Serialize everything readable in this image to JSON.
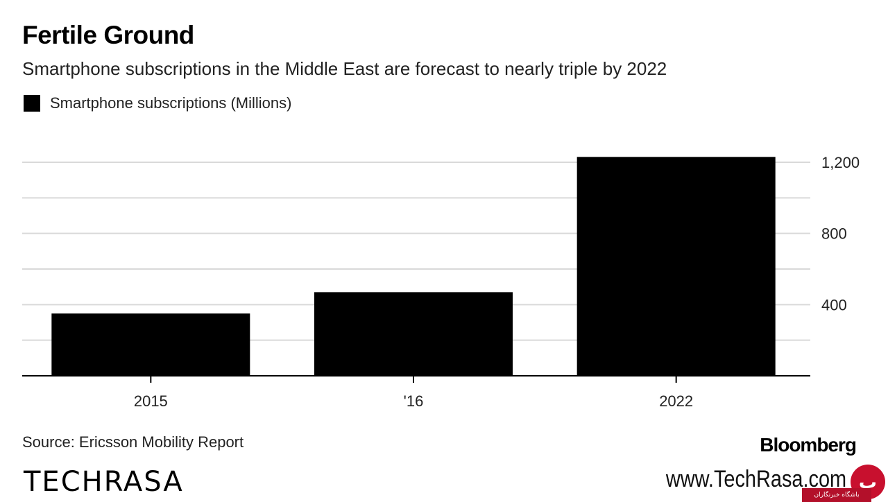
{
  "header": {
    "title": "Fertile Ground",
    "subtitle": "Smartphone subscriptions in the Middle East are forecast to nearly triple by 2022"
  },
  "legend": {
    "label": "Smartphone subscriptions (Millions)",
    "color": "#000000"
  },
  "chart_data": {
    "type": "bar",
    "categories": [
      "2015",
      "'16",
      "2022"
    ],
    "series": [
      {
        "name": "Smartphone subscriptions (Millions)",
        "values": [
          350,
          470,
          1230
        ],
        "color": "#000000"
      }
    ],
    "ylim": [
      0,
      1200
    ],
    "yticks": [
      400,
      800,
      1200
    ],
    "ytick_labels": [
      "400",
      "800",
      "1,200"
    ],
    "minor_gridlines": [
      200,
      600,
      1000
    ],
    "grid": true,
    "y_axis_side": "right",
    "legend_position": "top-left"
  },
  "footer": {
    "source": "Source: Ericsson Mobility Report",
    "brand": "Bloomberg"
  },
  "watermark": {
    "logo": "TECHRASA",
    "url": "www.TechRasa.com",
    "badge_text": "باشگاه خبرنگاران",
    "badge_color": "#c8102e"
  }
}
